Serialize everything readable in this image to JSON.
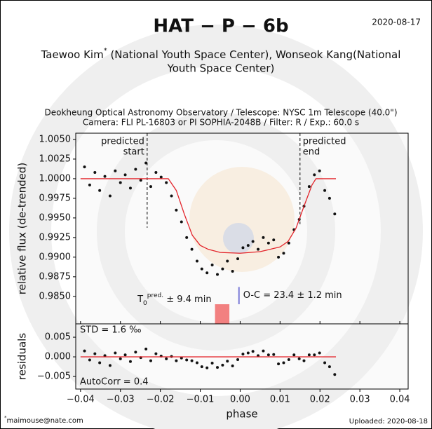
{
  "header": {
    "title": "HAT − P − 6b",
    "date": "2020-08-17",
    "authors": [
      "Taewoo Kim",
      "*",
      " (National Youth Space Center), Wonseok Kang(National",
      "Youth Space Center)"
    ],
    "observatory": [
      "Deokheung Optical Astronomy Observatory / Telescope: NYSC 1m Telescope (40.0\")",
      "Camera: FLI PL-16803 or PI SOPHIA-2048B / Filter: R / Exp.: 60.0 s"
    ]
  },
  "footer": {
    "contact_mark": "*",
    "contact": "maimouse@nate.com",
    "uploaded": "Uploaded: 2020-08-18"
  },
  "chart_data": [
    {
      "type": "scatter",
      "ylabel": "relative flux (de-trended)",
      "xlim": [
        -0.0412,
        0.0421
      ],
      "ylim": [
        0.9815,
        1.0058
      ],
      "xticks": [
        -0.04,
        -0.03,
        -0.02,
        -0.01,
        0,
        0.01,
        0.02,
        0.03,
        0.04
      ],
      "yticks": [
        {
          "value": 0.985,
          "label": "0.9850"
        },
        {
          "value": 0.9875,
          "label": "0.9875"
        },
        {
          "value": 0.99,
          "label": "0.9900"
        },
        {
          "value": 0.9925,
          "label": "0.9925"
        },
        {
          "value": 0.995,
          "label": "0.9950"
        },
        {
          "value": 0.9975,
          "label": "0.9975"
        },
        {
          "value": 1,
          "label": "1.0000"
        },
        {
          "value": 1.0025,
          "label": "1.0025"
        },
        {
          "value": 1.005,
          "label": "1.0050"
        }
      ],
      "series": [
        {
          "mode": "markers",
          "color": "#111111",
          "x": [
            -0.039,
            -0.0377,
            -0.0364,
            -0.0352,
            -0.0339,
            -0.0326,
            -0.0313,
            -0.03,
            -0.0288,
            -0.0275,
            -0.0262,
            -0.0249,
            -0.0236,
            -0.0224,
            -0.0211,
            -0.0198,
            -0.0185,
            -0.0172,
            -0.016,
            -0.0147,
            -0.0134,
            -0.0121,
            -0.0108,
            -0.0096,
            -0.0083,
            -0.007,
            -0.0057,
            -0.0044,
            -0.0032,
            -0.0019,
            -0.0006,
            0.0007,
            0.002,
            0.0032,
            0.0045,
            0.0058,
            0.0071,
            0.0084,
            0.0096,
            0.0109,
            0.0122,
            0.0135,
            0.0148,
            0.016,
            0.0173,
            0.0186,
            0.0199,
            0.0212,
            0.0224,
            0.0237
          ],
          "values": [
            1.0015,
            0.9992,
            1.0008,
            0.9985,
            1.0003,
            0.9978,
            1.001,
            0.9995,
            1.0005,
            0.9988,
            1.0012,
            0.9998,
            1.002,
            0.999,
            1.0008,
            1.0002,
            0.9995,
            0.9978,
            0.996,
            0.9945,
            0.9925,
            0.991,
            0.9895,
            0.9885,
            0.988,
            0.989,
            0.9878,
            0.9885,
            0.9895,
            0.9882,
            0.9898,
            0.9912,
            0.9915,
            0.992,
            0.991,
            0.9925,
            0.9918,
            0.9922,
            0.99,
            0.9905,
            0.9918,
            0.9935,
            0.9948,
            0.9965,
            0.999,
            1.0005,
            1.001,
            0.9985,
            0.9975,
            0.9955
          ]
        },
        {
          "mode": "line",
          "color": "#e3242b",
          "x": [
            -0.04,
            -0.018,
            -0.016,
            -0.014,
            -0.012,
            -0.01,
            -0.008,
            -0.005,
            0,
            0.005,
            0.01,
            0.012,
            0.014,
            0.016,
            0.018,
            0.019,
            0.024
          ],
          "values": [
            1,
            1,
            0.9985,
            0.9955,
            0.9928,
            0.9915,
            0.991,
            0.9906,
            0.9905,
            0.9907,
            0.9913,
            0.992,
            0.9937,
            0.9965,
            0.9992,
            1,
            1
          ]
        }
      ],
      "predicted_start": {
        "x": -0.0233,
        "y_end": 0.99375,
        "label": [
          "predicted",
          "start"
        ]
      },
      "predicted_end": {
        "x": 0.015,
        "y_end": 0.9942,
        "label": [
          "predicted",
          "end"
        ]
      },
      "oc": {
        "x": -0.0003,
        "y": [
          0.984,
          0.9862
        ],
        "label": "O-C = 23.4 ± 1.2 min",
        "color": "#7b7bd8"
      },
      "t0": {
        "x": [
          -0.0063,
          -0.0027
        ],
        "y_top": 0.984,
        "color": "#f28080",
        "base": "T",
        "sub": "0",
        "sup": "pred.",
        "label": " ± 9.4 min"
      }
    },
    {
      "type": "scatter",
      "ylabel": "residuals",
      "xlabel": "phase",
      "xlim": [
        -0.0412,
        0.0421
      ],
      "ylim": [
        -0.0082,
        0.0084
      ],
      "xticks": [
        {
          "value": -0.04,
          "label": "−0.04"
        },
        {
          "value": -0.03,
          "label": "−0.03"
        },
        {
          "value": -0.02,
          "label": "−0.02"
        },
        {
          "value": -0.01,
          "label": "−0.01"
        },
        {
          "value": 0,
          "label": "0.00"
        },
        {
          "value": 0.01,
          "label": "0.01"
        },
        {
          "value": 0.02,
          "label": "0.02"
        },
        {
          "value": 0.03,
          "label": "0.03"
        },
        {
          "value": 0.04,
          "label": "0.04"
        }
      ],
      "yticks": [
        {
          "value": -0.005,
          "label": "−0.005"
        },
        {
          "value": 0,
          "label": "0.000"
        },
        0.005
      ],
      "series": [
        {
          "mode": "markers",
          "color": "#111111",
          "x": [
            -0.039,
            -0.0377,
            -0.0364,
            -0.0352,
            -0.0339,
            -0.0326,
            -0.0313,
            -0.03,
            -0.0288,
            -0.0275,
            -0.0262,
            -0.0249,
            -0.0236,
            -0.0224,
            -0.0211,
            -0.0198,
            -0.0185,
            -0.0172,
            -0.016,
            -0.0147,
            -0.0134,
            -0.0121,
            -0.0108,
            -0.0096,
            -0.0083,
            -0.007,
            -0.0057,
            -0.0044,
            -0.0032,
            -0.0019,
            -0.0006,
            0.0007,
            0.002,
            0.0032,
            0.0045,
            0.0058,
            0.0071,
            0.0084,
            0.0096,
            0.0109,
            0.0122,
            0.0135,
            0.0148,
            0.016,
            0.0173,
            0.0186,
            0.0199,
            0.0212,
            0.0224,
            0.0237
          ],
          "values": [
            0.0015,
            -0.0008,
            0.0008,
            -0.0015,
            0.0003,
            -0.0022,
            0.001,
            -0.0005,
            0.0005,
            -0.0012,
            0.0012,
            -0.0002,
            0.002,
            -0.001,
            0.0008,
            0.0002,
            -0.0005,
            0.0001,
            -0.001,
            -0.0003,
            -0.0008,
            -0.001,
            -0.0015,
            -0.0025,
            -0.0028,
            -0.0016,
            -0.0027,
            -0.0021,
            -0.0011,
            -0.0023,
            -0.0007,
            0.0007,
            0.001,
            0.0014,
            0.0003,
            0.0015,
            0.0005,
            0.0006,
            -0.0018,
            -0.0015,
            -0.0007,
            0.0005,
            -0.0005,
            -0.001,
            0.0005,
            0.0005,
            0.001,
            -0.0015,
            -0.0025,
            -0.0045
          ]
        },
        {
          "mode": "line",
          "color": "#e3242b",
          "x": [
            -0.04,
            0.024
          ],
          "values": [
            0,
            0
          ]
        }
      ],
      "notes": [
        "STD = 1.6 ‰",
        "AutoCorr = 0.4"
      ]
    }
  ]
}
